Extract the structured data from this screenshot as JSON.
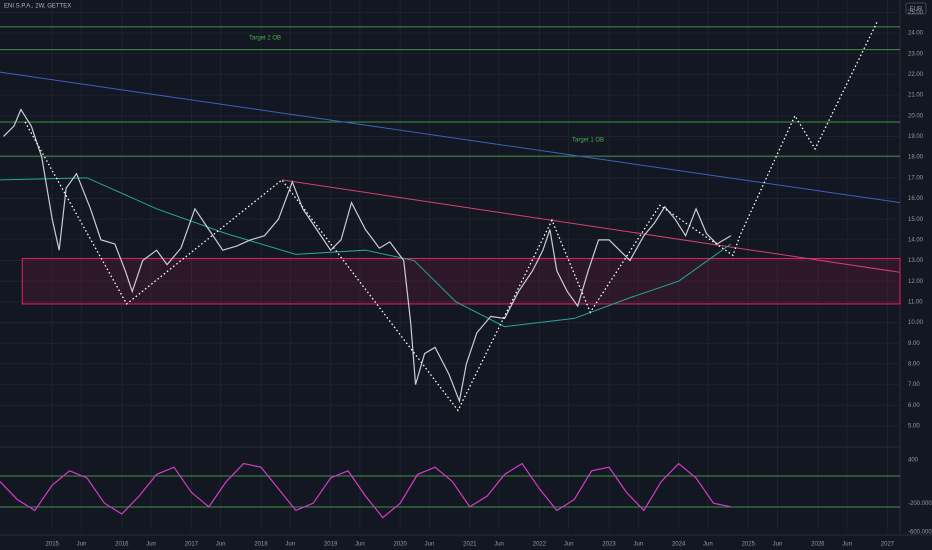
{
  "chart_data": [
    {
      "type": "line",
      "title": "ENI S.P.A., 2W, GETTEX",
      "currency": "EUR",
      "annotations": [
        "Target 2 OB",
        "Target 1 OB"
      ],
      "xlim": [
        2014.25,
        2027.18
      ],
      "ylim": [
        4.32,
        25.6
      ],
      "grid": true,
      "xticks": [
        2015,
        {
          "value": 2015.42,
          "label": "Jun"
        },
        2016,
        {
          "value": 2016.42,
          "label": "Jun"
        },
        2017,
        {
          "value": 2017.42,
          "label": "Jun"
        },
        2018,
        {
          "value": 2018.42,
          "label": "Jun"
        },
        2019,
        {
          "value": 2019.42,
          "label": "Jun"
        },
        2020,
        {
          "value": 2020.42,
          "label": "Jun"
        },
        2021,
        {
          "value": 2021.42,
          "label": "Jun"
        },
        2022,
        {
          "value": 2022.42,
          "label": "Jun"
        },
        2023,
        {
          "value": 2023.42,
          "label": "Jun"
        },
        2024,
        {
          "value": 2024.42,
          "label": "Jun"
        },
        2025,
        {
          "value": 2025.42,
          "label": "Jun"
        },
        2026,
        {
          "value": 2026.42,
          "label": "Jun"
        },
        2027
      ],
      "yticks": [
        {
          "value": 5,
          "label": "5.00"
        },
        {
          "value": 6,
          "label": "6.00"
        },
        {
          "value": 7,
          "label": "7.00"
        },
        {
          "value": 8,
          "label": "8.00"
        },
        {
          "value": 9,
          "label": "9.00"
        },
        {
          "value": 10,
          "label": "10.00"
        },
        {
          "value": 11,
          "label": "11.00"
        },
        {
          "value": 12,
          "label": "12.00"
        },
        {
          "value": 13,
          "label": "13.00"
        },
        {
          "value": 14,
          "label": "14.00"
        },
        {
          "value": 15,
          "label": "15.00"
        },
        {
          "value": 16,
          "label": "16.00"
        },
        {
          "value": 17,
          "label": "17.00"
        },
        {
          "value": 18,
          "label": "18.00"
        },
        {
          "value": 19,
          "label": "19.00"
        },
        {
          "value": 20,
          "label": "20.00"
        },
        {
          "value": 21,
          "label": "21.00"
        },
        {
          "value": 22,
          "label": "22.00"
        },
        {
          "value": 23,
          "label": "23.00"
        },
        {
          "value": 24,
          "label": "24.00"
        },
        {
          "value": 25,
          "label": "25.00"
        }
      ],
      "series": [
        {
          "color": "#c8ccd6",
          "x": [
            2014.3,
            2014.45,
            2014.55,
            2014.7,
            2014.85,
            2015.0,
            2015.1,
            2015.2,
            2015.35,
            2015.55,
            2015.7,
            2015.9,
            2016.05,
            2016.15,
            2016.3,
            2016.5,
            2016.65,
            2016.85,
            2017.05,
            2017.25,
            2017.45,
            2017.65,
            2017.85,
            2018.05,
            2018.25,
            2018.45,
            2018.6,
            2018.8,
            2019.0,
            2019.15,
            2019.3,
            2019.5,
            2019.7,
            2019.85,
            2020.05,
            2020.15,
            2020.22,
            2020.35,
            2020.5,
            2020.7,
            2020.85,
            2020.95,
            2021.1,
            2021.3,
            2021.5,
            2021.7,
            2021.9,
            2022.05,
            2022.15,
            2022.25,
            2022.4,
            2022.55,
            2022.7,
            2022.85,
            2023.0,
            2023.15,
            2023.3,
            2023.5,
            2023.65,
            2023.8,
            2023.95,
            2024.1,
            2024.25,
            2024.4,
            2024.55,
            2024.75
          ],
          "values": [
            19.0,
            19.5,
            20.3,
            19.5,
            18.0,
            15.0,
            13.5,
            16.5,
            17.2,
            15.5,
            14.0,
            13.8,
            12.5,
            11.5,
            13.0,
            13.5,
            12.8,
            13.6,
            15.5,
            14.5,
            13.5,
            13.7,
            14.0,
            14.2,
            15.0,
            16.8,
            15.5,
            14.5,
            13.5,
            14.0,
            15.8,
            14.5,
            13.6,
            13.9,
            13.0,
            10.0,
            7.0,
            8.5,
            8.8,
            7.5,
            6.2,
            8.0,
            9.5,
            10.3,
            10.2,
            11.5,
            12.5,
            13.5,
            14.5,
            12.5,
            11.5,
            10.8,
            12.5,
            14.0,
            14.0,
            13.5,
            13.0,
            14.2,
            14.8,
            15.6,
            15.0,
            14.2,
            15.5,
            14.3,
            13.8,
            14.2
          ]
        }
      ],
      "ma": {
        "color": "#26a69a",
        "x": [
          2014.25,
          2015.5,
          2016.5,
          2017.5,
          2018.5,
          2019.5,
          2020.2,
          2020.8,
          2021.5,
          2022.5,
          2023.3,
          2024.0,
          2024.75
        ],
        "values": [
          16.9,
          17.0,
          15.5,
          14.3,
          13.3,
          13.5,
          13.0,
          11.0,
          9.8,
          10.2,
          11.2,
          12.0,
          13.8
        ]
      },
      "projection": {
        "color": "#ffffff",
        "x": [
          2014.61,
          2016.07,
          2018.3,
          2020.83,
          2022.18,
          2022.73,
          2023.73,
          2024.78,
          2024.88,
          2025.67,
          2025.96,
          2026.86
        ],
        "values": [
          19.7,
          10.9,
          16.9,
          5.75,
          14.95,
          10.5,
          15.67,
          13.25,
          14.2,
          20.0,
          18.4,
          24.6
        ]
      },
      "trendlines": [
        {
          "color": "#3f5fbf",
          "x": [
            2014.25,
            2027.18
          ],
          "values": [
            22.11,
            15.8
          ]
        },
        {
          "color": "#d8406a",
          "x": [
            2018.3,
            2027.18
          ],
          "values": [
            16.9,
            12.43
          ]
        }
      ],
      "levels": [
        24.3,
        23.2,
        19.7,
        18.05
      ],
      "level_color": "#4caf50",
      "zone": [
        10.9,
        13.1
      ],
      "zone_start": 2014.57,
      "zone_color": "#e91e63"
    },
    {
      "type": "line",
      "xlim": [
        2014.25,
        2027.18
      ],
      "ylim": [
        -572,
        497
      ],
      "yticks": [
        400,
        {
          "value": -200,
          "label": "-200.000"
        },
        {
          "value": -600,
          "label": "-600.000"
        }
      ],
      "levels": [
        178,
        -253
      ],
      "level_color": "#4caf50",
      "series": [
        {
          "color": "#d23cc8",
          "x": [
            2014.25,
            2014.5,
            2014.75,
            2015,
            2015.25,
            2015.5,
            2015.75,
            2016,
            2016.25,
            2016.5,
            2016.75,
            2017,
            2017.25,
            2017.5,
            2017.75,
            2018,
            2018.25,
            2018.5,
            2018.75,
            2019,
            2019.25,
            2019.5,
            2019.75,
            2020,
            2020.25,
            2020.5,
            2020.75,
            2021,
            2021.25,
            2021.5,
            2021.75,
            2022,
            2022.25,
            2022.5,
            2022.75,
            2023,
            2023.25,
            2023.5,
            2023.75,
            2024,
            2024.25,
            2024.5,
            2024.75
          ],
          "values": [
            100,
            -150,
            -300,
            50,
            250,
            150,
            -200,
            -350,
            -100,
            200,
            300,
            -50,
            -250,
            100,
            350,
            300,
            0,
            -300,
            -200,
            150,
            250,
            -100,
            -400,
            -200,
            200,
            300,
            100,
            -250,
            -100,
            200,
            350,
            0,
            -300,
            -150,
            250,
            300,
            -50,
            -300,
            100,
            350,
            150,
            -200,
            -250
          ]
        }
      ]
    }
  ]
}
